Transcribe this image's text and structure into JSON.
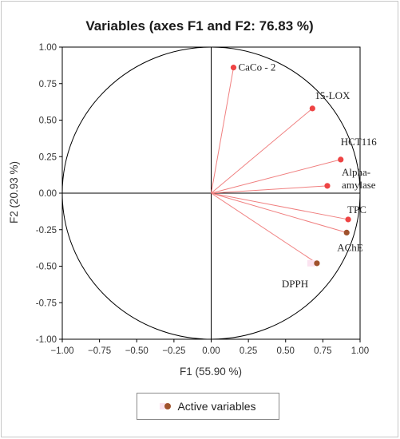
{
  "chart_data": {
    "type": "scatter",
    "title": "Variables (axes F1 and F2: 76.83 %)",
    "xlabel": "F1 (55.90 %)",
    "ylabel": "F2 (20.93 %)",
    "xlim": [
      -1.0,
      1.0
    ],
    "ylim": [
      -1.0,
      1.0
    ],
    "xticks": [
      "−1.00",
      "−0.75",
      "−0.50",
      "−0.25",
      "0.00",
      "0.25",
      "0.50",
      "0.75",
      "1.00"
    ],
    "yticks": [
      "1.00",
      "0.75",
      "0.50",
      "0.25",
      "0.00",
      "-0.25",
      "-0.50",
      "-0.75",
      "-1.00"
    ],
    "legend": {
      "label": "Active variables",
      "position": "bottom"
    },
    "series": [
      {
        "name": "Active variables",
        "points": [
          {
            "label": "CaCo - 2",
            "x": 0.15,
            "y": 0.86,
            "color": "#ee4444"
          },
          {
            "label": "15-LOX",
            "x": 0.68,
            "y": 0.58,
            "color": "#ee4444"
          },
          {
            "label": "HCT116",
            "x": 0.87,
            "y": 0.23,
            "color": "#ee4444"
          },
          {
            "label": "Alpha-amylase",
            "x": 0.78,
            "y": 0.05,
            "color": "#ee4444",
            "lines": [
              "Alpha-",
              "amylase"
            ]
          },
          {
            "label": "TPC",
            "x": 0.92,
            "y": -0.18,
            "color": "#ee4444"
          },
          {
            "label": "AChE",
            "x": 0.91,
            "y": -0.27,
            "color": "#a0522d"
          },
          {
            "label": "DPPH",
            "x": 0.71,
            "y": -0.48,
            "color": "#a0522d"
          }
        ]
      }
    ],
    "circle": {
      "radius": 1.0
    },
    "colors": {
      "vector": "#f08080",
      "axis": "#000000",
      "circle": "#000000"
    }
  }
}
